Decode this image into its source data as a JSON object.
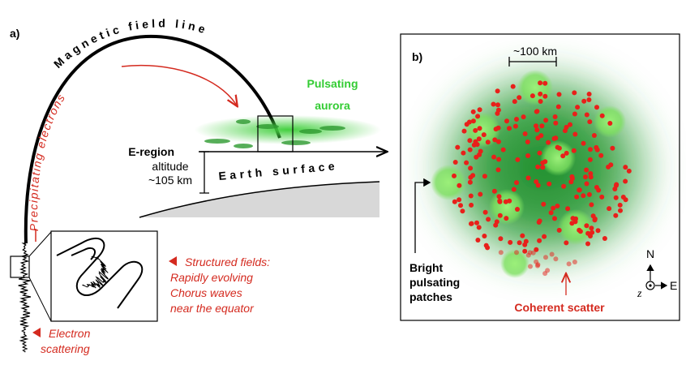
{
  "panel_a": {
    "label": "a)",
    "field_line": "Magnetic field line",
    "electrons": "Precipitating electrons",
    "aurora": [
      "Pulsating",
      "aurora"
    ],
    "e_region": {
      "title": "E-region",
      "lines": [
        "altitude",
        "~105 km"
      ]
    },
    "surface": "Earth surface",
    "structured": [
      "Structured fields:",
      "Rapidly evolving",
      "Chorus waves",
      "near the equator"
    ],
    "scattering": [
      "Electron",
      "scattering"
    ]
  },
  "panel_b": {
    "label": "b)",
    "scale": "~100 km",
    "patches": [
      "Bright",
      "pulsating",
      "patches"
    ],
    "scatter": "Coherent scatter",
    "compass": {
      "north": "N",
      "east": "E",
      "z": "z"
    }
  }
}
